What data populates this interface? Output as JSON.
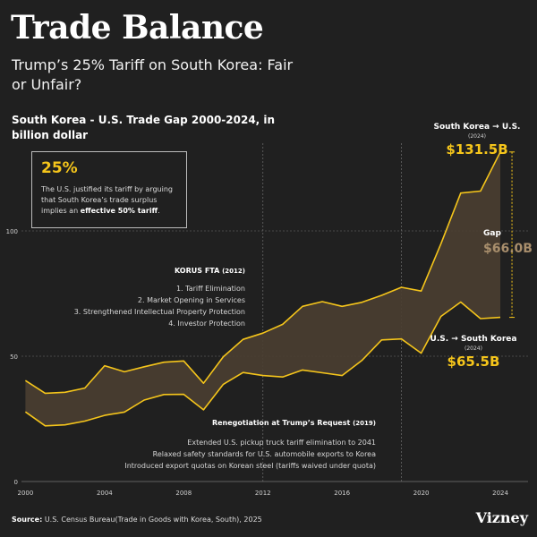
{
  "header": {
    "title": "Trade Balance",
    "subtitle": "Trump’s 25% Tariff on South Korea: Fair or Unfair?",
    "chart_title": "South Korea - U.S. Trade Gap 2000-2024, in billion dollar"
  },
  "callout": {
    "value": "25%",
    "text_before": "The U.S. justified its tariff by arguing that South Korea’s trade surplus implies an ",
    "text_bold": "effective 50% tariff",
    "text_after": "."
  },
  "korus": {
    "title": "KORUS FTA",
    "year": "(2012)",
    "items": [
      "1. Tariff Elimination",
      "2. Market Opening in Services",
      "3. Strengthened Intellectual Property Protection",
      "4. Investor Protection"
    ]
  },
  "renegotiation": {
    "title": "Renegotiation at Trump’s Request",
    "year": "(2019)",
    "items": [
      "Extended U.S. pickup truck tariff elimination to 2041",
      "Relaxed safety standards for U.S. automobile exports to Korea",
      "Introduced export quotas on Korean steel (tariffs waived under quota)"
    ]
  },
  "annotations": {
    "sk_label": "South Korea → U.S.",
    "sk_year": "(2024)",
    "sk_value": "$131.5B",
    "us_label": "U.S. → South Korea",
    "us_year": "(2024)",
    "us_value": "$65.5B",
    "gap_label": "Gap",
    "gap_value": "$66.0B"
  },
  "footer": {
    "source_label": "Source:",
    "source_text": "U.S. Census Bureau(Trade in Goods with Korea, South), 2025",
    "brand": "Vizney"
  },
  "colors": {
    "accent": "#f5c51b",
    "gap_fill": "#4a3e31",
    "gap_text": "#a88e6c",
    "background": "#202020"
  },
  "chart_data": {
    "type": "area",
    "title": "South Korea - U.S. Trade Gap 2000-2024, in billion dollar",
    "x": [
      2000,
      2001,
      2002,
      2003,
      2004,
      2005,
      2006,
      2007,
      2008,
      2009,
      2010,
      2011,
      2012,
      2013,
      2014,
      2015,
      2016,
      2017,
      2018,
      2019,
      2020,
      2021,
      2022,
      2023,
      2024
    ],
    "series": [
      {
        "name": "South Korea → U.S.",
        "values": [
          40.3,
          35.2,
          35.6,
          37.3,
          46.2,
          43.8,
          45.8,
          47.6,
          48.1,
          39.2,
          49.8,
          56.7,
          59.2,
          62.7,
          69.9,
          71.8,
          69.9,
          71.5,
          74.3,
          77.5,
          76.0,
          94.9,
          115.1,
          115.9,
          131.5
        ]
      },
      {
        "name": "U.S. → South Korea",
        "values": [
          27.8,
          22.2,
          22.6,
          24.1,
          26.4,
          27.7,
          32.5,
          34.7,
          34.8,
          28.6,
          38.8,
          43.5,
          42.3,
          41.7,
          44.5,
          43.4,
          42.3,
          48.3,
          56.5,
          56.9,
          51.2,
          65.9,
          71.6,
          65.0,
          65.5
        ]
      }
    ],
    "xticks": [
      "2000",
      "2004",
      "2008",
      "2012",
      "2016",
      "2020",
      "2024"
    ],
    "yticks": [
      "0",
      "50",
      "100"
    ],
    "ylim": [
      0,
      135
    ],
    "xlim": [
      1999.8,
      2025.4
    ],
    "reference_years": [
      2012,
      2019
    ],
    "gap_2024": 66.0
  }
}
